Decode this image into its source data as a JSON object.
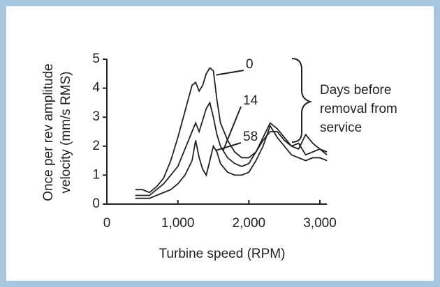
{
  "chart_data": {
    "type": "line",
    "ylabel": [
      "Once per rev amplitude",
      "velocity (mm/s RMS)"
    ],
    "xlabel": "Turbine speed (RPM)",
    "annotation": [
      "Days before",
      "removal from",
      "service"
    ],
    "x": [
      400,
      500,
      600,
      700,
      800,
      900,
      1000,
      1100,
      1200,
      1250,
      1300,
      1350,
      1400,
      1450,
      1500,
      1550,
      1600,
      1700,
      1800,
      1900,
      2000,
      2100,
      2200,
      2300,
      2400,
      2500,
      2600,
      2700,
      2800,
      2900,
      3000,
      3100
    ],
    "series": [
      {
        "name": "0",
        "color": "#222222",
        "values": [
          0.5,
          0.5,
          0.4,
          0.6,
          0.9,
          1.5,
          2.3,
          3.2,
          4.1,
          4.2,
          3.9,
          4.1,
          4.5,
          4.7,
          4.6,
          3.6,
          2.8,
          2.2,
          1.8,
          1.6,
          1.6,
          1.8,
          2.2,
          2.5,
          2.5,
          2.2,
          2.0,
          1.9,
          2.4,
          2.1,
          1.9,
          1.8
        ]
      },
      {
        "name": "14",
        "color": "#222222",
        "values": [
          0.3,
          0.3,
          0.3,
          0.5,
          0.7,
          1.0,
          1.3,
          1.9,
          2.5,
          2.8,
          2.5,
          2.9,
          3.3,
          3.5,
          3.0,
          2.4,
          2.0,
          1.6,
          1.4,
          1.3,
          1.4,
          1.8,
          2.3,
          2.8,
          2.6,
          2.3,
          2.0,
          2.1,
          1.7,
          1.8,
          1.9,
          1.7
        ]
      },
      {
        "name": "58",
        "color": "#222222",
        "values": [
          0.2,
          0.2,
          0.2,
          0.3,
          0.4,
          0.5,
          0.7,
          1.0,
          1.5,
          2.2,
          1.6,
          1.2,
          1.0,
          1.5,
          2.0,
          1.8,
          1.4,
          1.1,
          1.0,
          1.0,
          1.1,
          1.5,
          2.0,
          2.7,
          2.3,
          2.0,
          1.7,
          1.6,
          1.5,
          1.6,
          1.6,
          1.5
        ]
      }
    ],
    "xlim": [
      0,
      3000
    ],
    "xticks": [
      0,
      {
        "value": 1000,
        "label": "1,000"
      },
      {
        "value": 2000,
        "label": "2,000"
      },
      {
        "value": 3000,
        "label": "3,000"
      }
    ],
    "ylim": [
      0,
      5
    ],
    "yticks": [
      0,
      1,
      2,
      3,
      4,
      5
    ]
  }
}
